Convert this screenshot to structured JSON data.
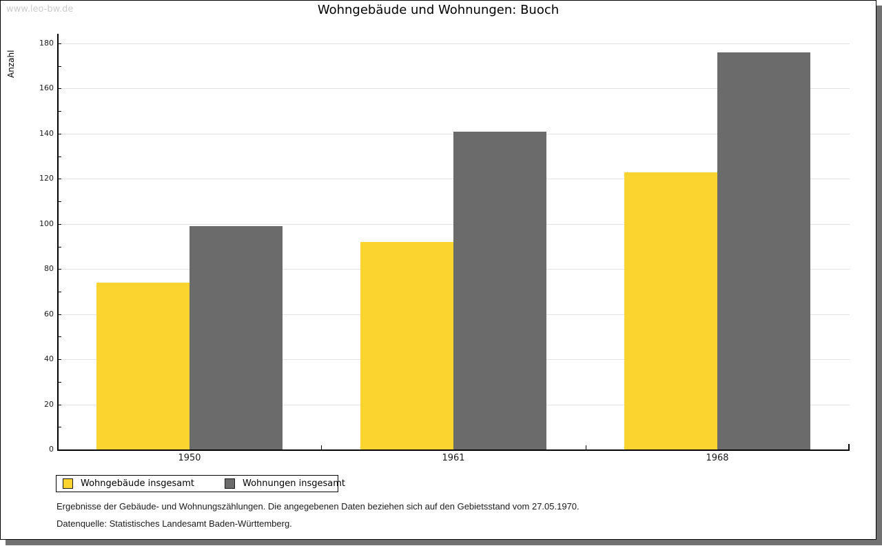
{
  "watermark": "www.leo-bw.de",
  "title": "Wohngebäude und Wohnungen: Buoch",
  "chart_data": {
    "type": "bar",
    "title": "Wohngebäude und Wohnungen: Buoch",
    "categories": [
      "1950",
      "1961",
      "1968"
    ],
    "series": [
      {
        "name": "Wohngebäude insgesamt",
        "color": "#FBD42F",
        "values": [
          74,
          92,
          123
        ]
      },
      {
        "name": "Wohnungen insgesamt",
        "color": "#6B6B6B",
        "values": [
          99,
          141,
          176
        ]
      }
    ],
    "xlabel": "",
    "ylabel": "Anzahl",
    "ylim": [
      0,
      180
    ],
    "ytick_step": 20,
    "yminor_step": 10,
    "grid": "horizontal-major",
    "legend_position": "bottom-left"
  },
  "footer": {
    "line1": "Ergebnisse der Gebäude- und Wohnungszählungen. Die angegebenen Daten beziehen sich auf den Gebietsstand vom 27.05.1970.",
    "line2": "Datenquelle: Statistisches Landesamt Baden-Württemberg."
  },
  "colors": {
    "bar_yellow": "#FBD42F",
    "bar_gray": "#6B6B6B",
    "gridline": "#E2E2E2",
    "axis": "#000000",
    "watermark": "#CCCCCC",
    "shadow": "#717171"
  }
}
